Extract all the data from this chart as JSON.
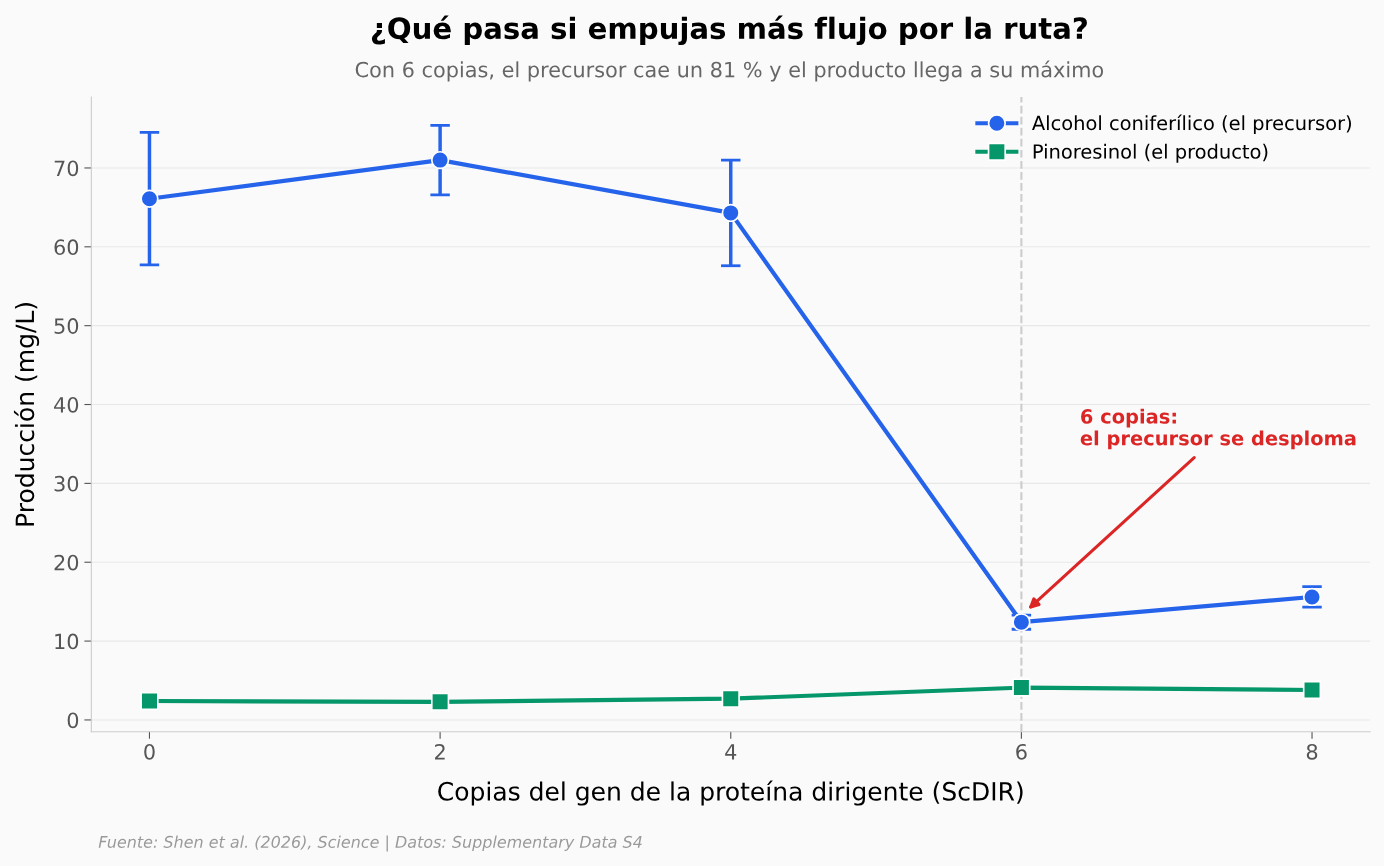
{
  "chart_data": {
    "type": "line",
    "title": "¿Qué pasa si empujas más flujo por la ruta?",
    "subtitle": "Con 6 copias, el precursor cae un 81 % y el producto llega a su máximo",
    "xlabel": "Copias del gen de la proteína dirigente (ScDIR)",
    "ylabel": "Producción (mg/L)",
    "x": [
      0,
      2,
      4,
      6,
      8
    ],
    "series": [
      {
        "name": "Alcohol coniferílico (el precursor)",
        "color": "#2563eb",
        "marker": "circle",
        "values": [
          66.1,
          71.0,
          64.3,
          12.4,
          15.6
        ],
        "errors": [
          8.4,
          4.4,
          6.7,
          0.9,
          1.3
        ]
      },
      {
        "name": "Pinoresinol (el producto)",
        "color": "#059669",
        "marker": "square",
        "values": [
          2.4,
          2.3,
          2.7,
          4.1,
          3.8
        ]
      }
    ],
    "xlim": [
      -0.4,
      8.4
    ],
    "ylim": [
      -1.5,
      79
    ],
    "xticks": [
      0,
      2,
      4,
      6,
      8
    ],
    "yticks": [
      0,
      10,
      20,
      30,
      40,
      50,
      60,
      70
    ],
    "ref_lines": [
      {
        "axis": "x",
        "value": 6,
        "color": "#cccccc",
        "line_style": "dashed"
      }
    ],
    "annotations": [
      "6 copias:\nel precursor se desploma",
      "Fuente: Shen et al. (2026), Science | Datos: Supplementary Data S4"
    ],
    "grid": "y",
    "legend": "top right",
    "line_style": "solid"
  }
}
